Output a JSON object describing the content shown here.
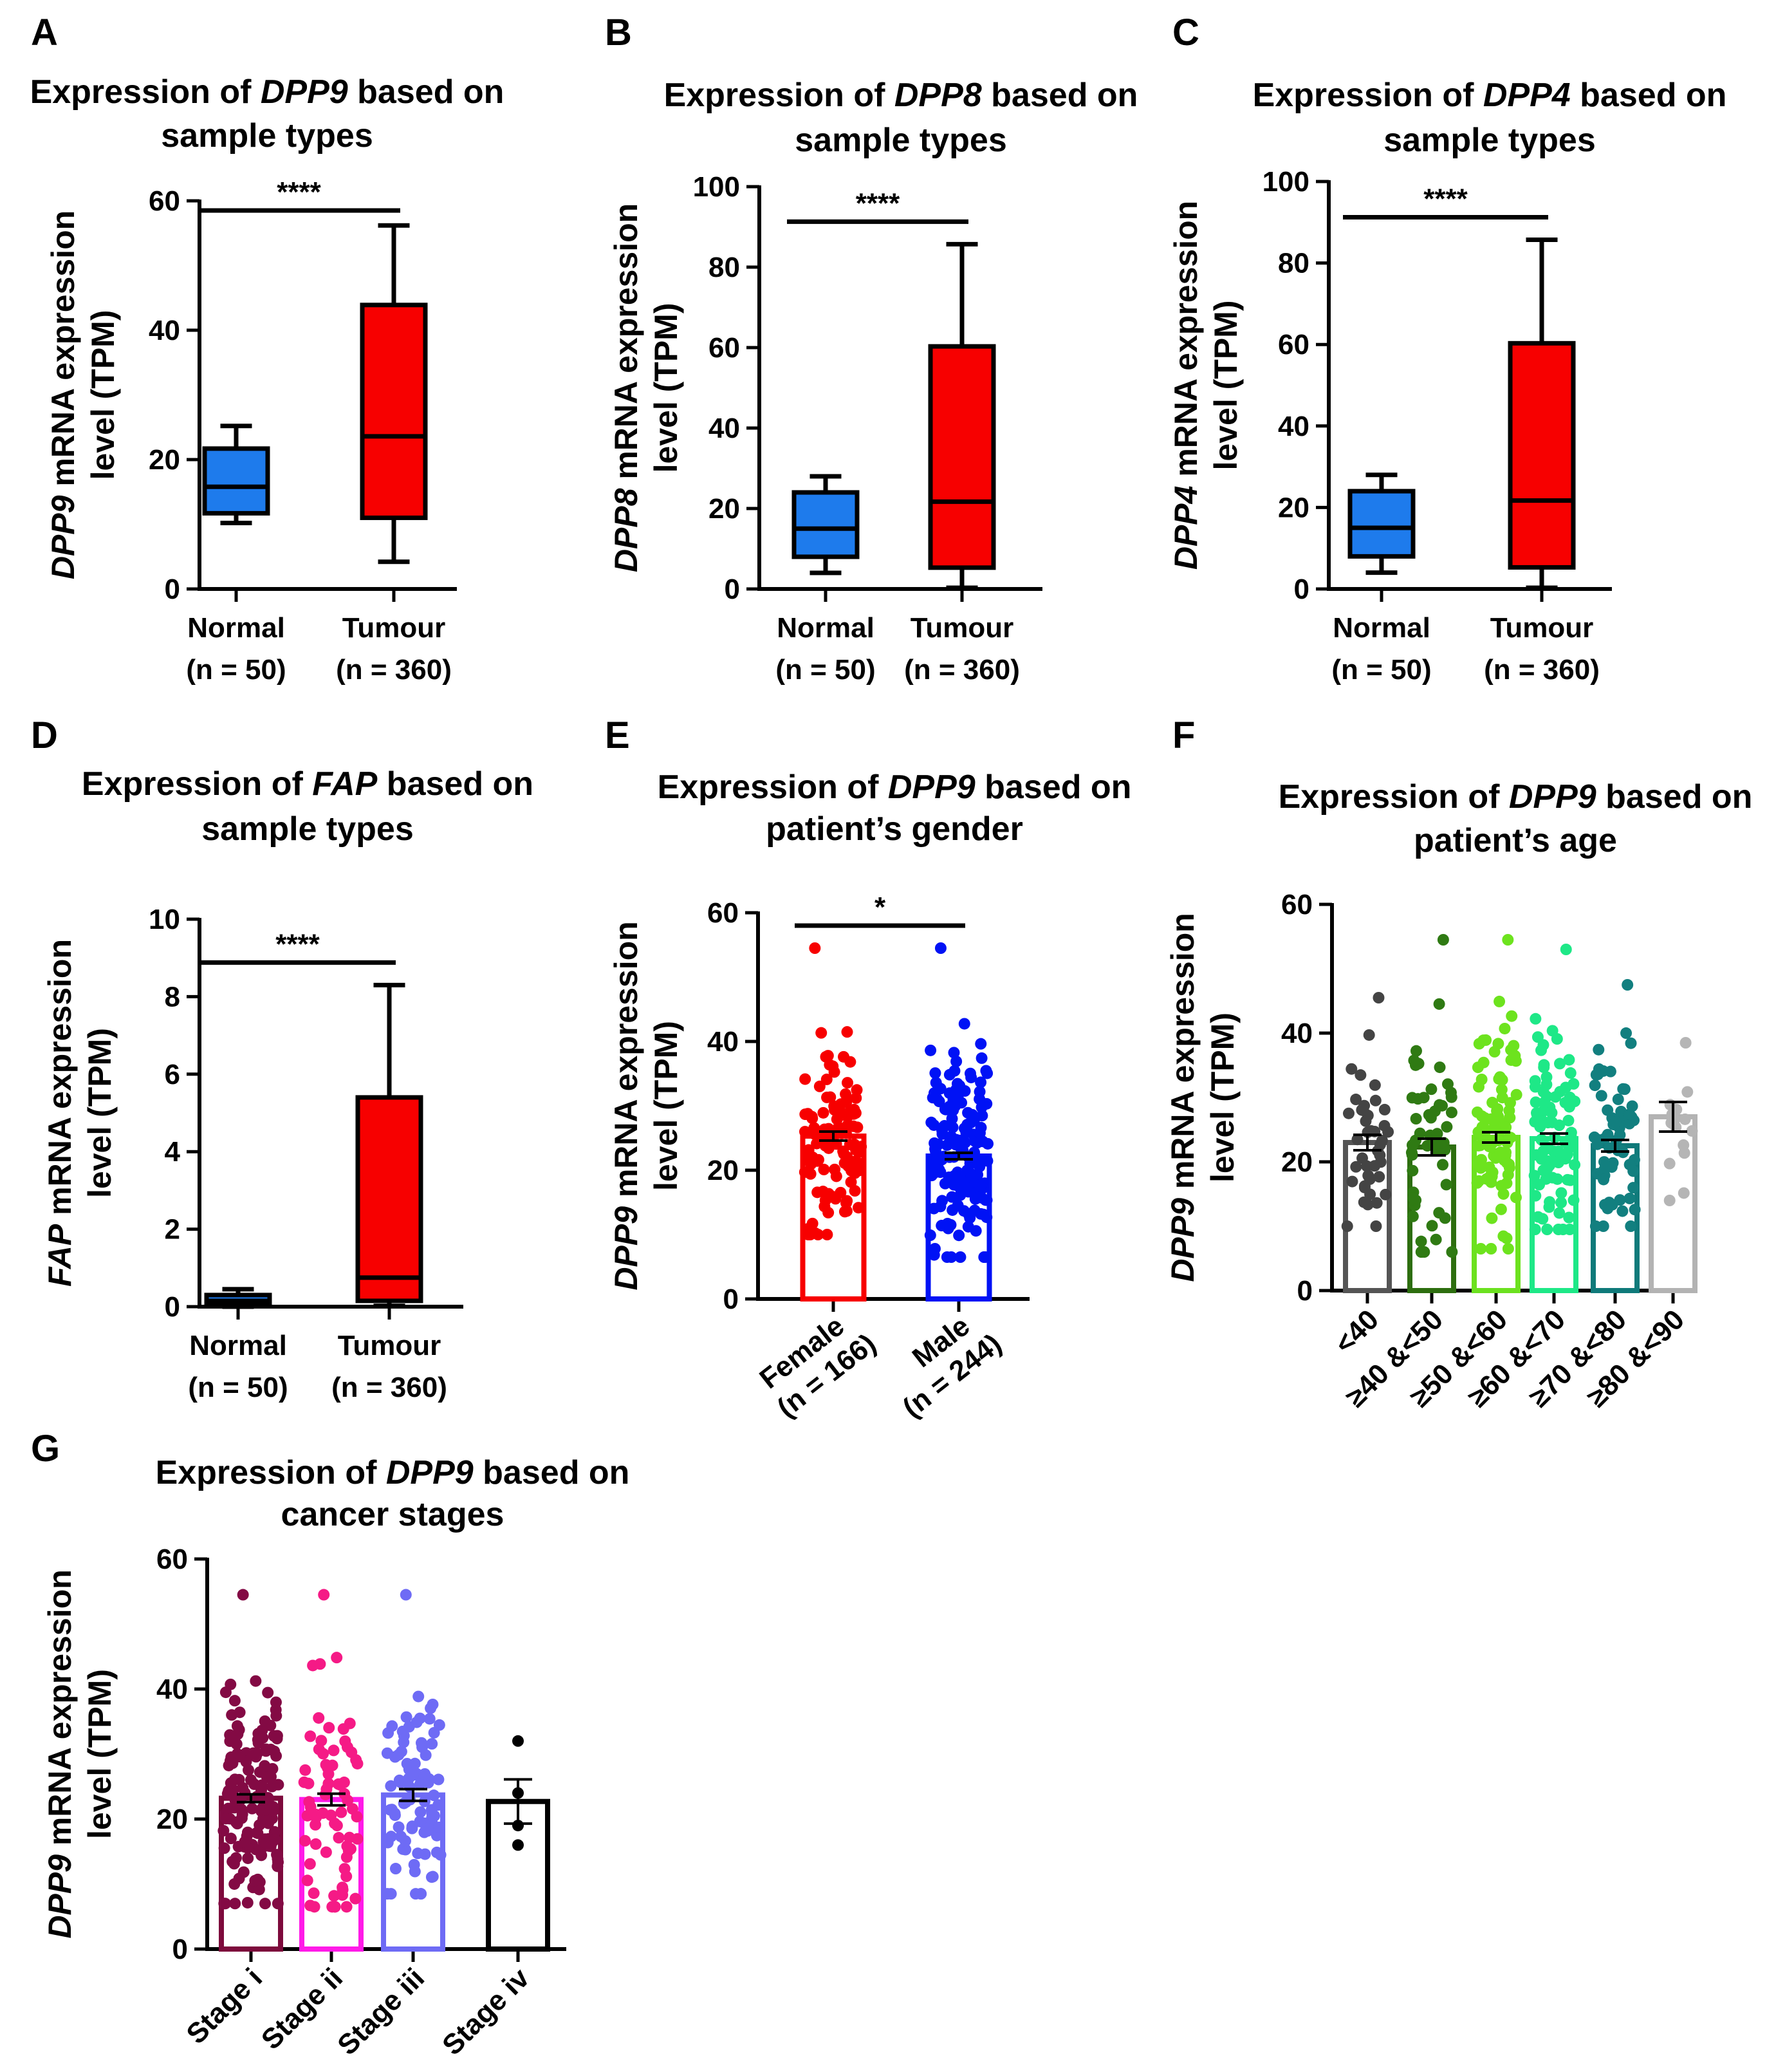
{
  "chart_data": [
    {
      "panel": "A",
      "type": "box",
      "title_parts": [
        "Expression of ",
        "DPP9",
        " based on"
      ],
      "title_line2": "sample types",
      "ylabel_parts": [
        "DPP9",
        " mRNA expression"
      ],
      "ylabel_line2": "level (TPM)",
      "ylim": [
        0,
        60
      ],
      "yticks": [
        0,
        20,
        40,
        60
      ],
      "categories": [
        {
          "name": "Normal",
          "n": "(n = 50)"
        },
        {
          "name": "Tumour",
          "n": "(n = 360)"
        }
      ],
      "boxes": [
        {
          "min": 10.2,
          "q1": 11.7,
          "median": 15.8,
          "q3": 21.7,
          "max": 25.2,
          "color": "#1e7bec"
        },
        {
          "min": 4.2,
          "q1": 11.0,
          "median": 23.6,
          "q3": 43.9,
          "max": 56.2,
          "color": "#f70000"
        }
      ],
      "significance": "****"
    },
    {
      "panel": "B",
      "type": "box",
      "title_parts": [
        "Expression of ",
        "DPP8",
        " based on"
      ],
      "title_line2": "sample types",
      "ylabel_parts": [
        "DPP8",
        " mRNA expression"
      ],
      "ylabel_line2": "level (TPM)",
      "ylim": [
        0,
        100
      ],
      "yticks": [
        0,
        20,
        40,
        60,
        80,
        100
      ],
      "categories": [
        {
          "name": "Normal",
          "n": "(n = 50)"
        },
        {
          "name": "Tumour",
          "n": "(n = 360)"
        }
      ],
      "boxes": [
        {
          "min": 4.0,
          "q1": 8.0,
          "median": 15.0,
          "q3": 24.0,
          "max": 28.0,
          "color": "#1e7bec"
        },
        {
          "min": 0.3,
          "q1": 5.3,
          "median": 21.7,
          "q3": 60.3,
          "max": 85.7,
          "color": "#f70000"
        }
      ],
      "significance": "****"
    },
    {
      "panel": "C",
      "type": "box",
      "title_parts": [
        "Expression of ",
        "DPP4",
        " based on"
      ],
      "title_line2": "sample types",
      "ylabel_parts": [
        "DPP4",
        " mRNA expression"
      ],
      "ylabel_line2": "level (TPM)",
      "ylim": [
        0,
        100
      ],
      "yticks": [
        0,
        20,
        40,
        60,
        80,
        100
      ],
      "categories": [
        {
          "name": "Normal",
          "n": "(n = 50)"
        },
        {
          "name": "Tumour",
          "n": "(n = 360)"
        }
      ],
      "boxes": [
        {
          "min": 4.0,
          "q1": 8.0,
          "median": 15.0,
          "q3": 24.0,
          "max": 28.0,
          "color": "#1e7bec"
        },
        {
          "min": 0.3,
          "q1": 5.3,
          "median": 21.7,
          "q3": 60.3,
          "max": 85.7,
          "color": "#f70000"
        }
      ],
      "significance": "****"
    },
    {
      "panel": "D",
      "type": "box",
      "title_parts": [
        "Expression of ",
        "FAP",
        " based on"
      ],
      "title_line2": "sample types",
      "ylabel_parts": [
        "FAP",
        " mRNA expression"
      ],
      "ylabel_line2": "level (TPM)",
      "ylim": [
        0,
        10
      ],
      "yticks": [
        0,
        2,
        4,
        6,
        8,
        10
      ],
      "categories": [
        {
          "name": "Normal",
          "n": "(n = 50)"
        },
        {
          "name": "Tumour",
          "n": "(n = 360)"
        }
      ],
      "boxes": [
        {
          "min": 0.0,
          "q1": 0.05,
          "median": 0.15,
          "q3": 0.3,
          "max": 0.45,
          "color": "#1e7bec"
        },
        {
          "min": 0.02,
          "q1": 0.15,
          "median": 0.75,
          "q3": 5.4,
          "max": 8.3,
          "color": "#f70000"
        }
      ],
      "significance": "****"
    },
    {
      "panel": "E",
      "type": "bar_scatter",
      "title_parts": [
        "Expression of ",
        "DPP9",
        " based on"
      ],
      "title_line2": "patient’s gender",
      "ylabel_parts": [
        "DPP9",
        " mRNA expression"
      ],
      "ylabel_line2": "level (TPM)",
      "ylim": [
        0,
        60
      ],
      "yticks": [
        0,
        20,
        40,
        60
      ],
      "categories": [
        {
          "name": "Female",
          "n": "(n = 166)"
        },
        {
          "name": "Male",
          "n": "(n = 244)"
        }
      ],
      "series": [
        {
          "mean": 25.3,
          "sem": 0.7,
          "min": 10,
          "max": 54.5,
          "n_points": 110,
          "color": "#f70000",
          "dot_color": "#f70000"
        },
        {
          "mean": 22.2,
          "sem": 0.5,
          "min": 6.5,
          "max": 54.5,
          "n_points": 160,
          "color": "#0012f5",
          "dot_color": "#0012f5"
        }
      ],
      "significance": "*"
    },
    {
      "panel": "F",
      "type": "bar_scatter",
      "title_parts": [
        "Expression of ",
        "DPP9",
        " based on"
      ],
      "title_line2": "patient’s age",
      "ylabel_parts": [
        "DPP9",
        " mRNA expression"
      ],
      "ylabel_line2": "level (TPM)",
      "ylim": [
        0,
        60
      ],
      "yticks": [
        0,
        20,
        40,
        60
      ],
      "categories": [
        {
          "name": "<40"
        },
        {
          "name": "≥40 &<50"
        },
        {
          "name": "≥50 &<60"
        },
        {
          "name": "≥60 &<70"
        },
        {
          "name": "≥70 &<80"
        },
        {
          "name": "≥80 &<90"
        }
      ],
      "series": [
        {
          "mean": 23.0,
          "sem": 1.2,
          "min": 10,
          "max": 45.5,
          "n_points": 40,
          "color": "#555555",
          "dot_color": "#444444"
        },
        {
          "mean": 22.3,
          "sem": 1.3,
          "min": 6,
          "max": 54.5,
          "n_points": 50,
          "color": "#2d6e0f",
          "dot_color": "#2f7a13"
        },
        {
          "mean": 23.8,
          "sem": 0.8,
          "min": 6.5,
          "max": 54.5,
          "n_points": 90,
          "color": "#6ce11f",
          "dot_color": "#6de31e"
        },
        {
          "mean": 23.6,
          "sem": 0.8,
          "min": 9.5,
          "max": 53.0,
          "n_points": 90,
          "color": "#1ee887",
          "dot_color": "#1ee887"
        },
        {
          "mean": 22.5,
          "sem": 0.9,
          "min": 10,
          "max": 47.5,
          "n_points": 60,
          "color": "#0f7a7a",
          "dot_color": "#127f7f"
        },
        {
          "mean": 27.0,
          "sem": 2.3,
          "min": 14,
          "max": 38.5,
          "n_points": 13,
          "color": "#b3b3b3",
          "dot_color": "#b5b5b5"
        }
      ]
    },
    {
      "panel": "G",
      "type": "bar_scatter",
      "title_parts": [
        "Expression of ",
        "DPP9",
        " based on"
      ],
      "title_line2": "cancer stages",
      "ylabel_parts": [
        "DPP9",
        " mRNA expression"
      ],
      "ylabel_line2": "level (TPM)",
      "ylim": [
        0,
        60
      ],
      "yticks": [
        0,
        20,
        40,
        60
      ],
      "categories": [
        {
          "name": "Stage i"
        },
        {
          "name": "Stage ii"
        },
        {
          "name": "Stage iii"
        },
        {
          "name": "Stage iv"
        }
      ],
      "series": [
        {
          "mean": 23.2,
          "sem": 0.6,
          "min": 7,
          "max": 54.5,
          "n_points": 140,
          "color": "#7d0a3c",
          "dot_color": "#830a44"
        },
        {
          "mean": 23.0,
          "sem": 0.9,
          "min": 6.5,
          "max": 54.5,
          "n_points": 70,
          "color": "#ff1ae8",
          "dot_color": "#f51a86"
        },
        {
          "mean": 23.7,
          "sem": 0.9,
          "min": 8.5,
          "max": 54.5,
          "n_points": 90,
          "color": "#6e6bf5",
          "dot_color": "#6e6bf5"
        },
        {
          "mean": 22.7,
          "sem": 3.4,
          "min": 16,
          "max": 32,
          "points": [
            32,
            24,
            19,
            16
          ],
          "color": "#000000",
          "dot_color": "#000000"
        }
      ]
    }
  ]
}
